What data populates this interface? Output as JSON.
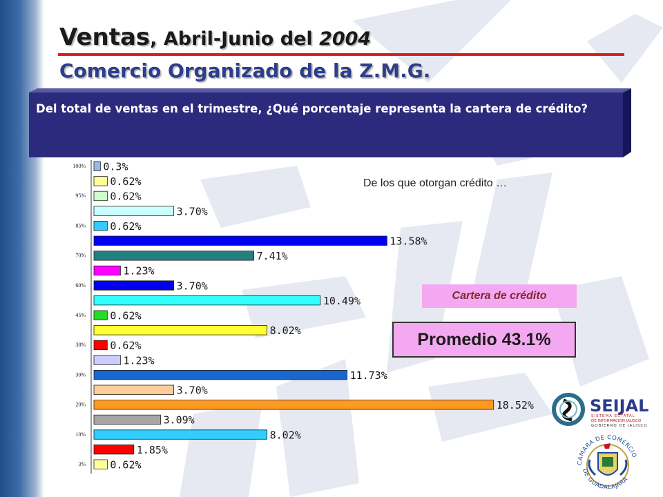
{
  "title": {
    "main": "Ventas",
    "rest": ", Abril-Junio del ",
    "year": "2004"
  },
  "subtitle": "Comercio Organizado de la Z.M.G.",
  "question": "Del total de ventas en el trimestre, ¿Qué porcentaje representa la cartera de crédito?",
  "note": "De los que otorgan crédito …",
  "cartera_label": "Cartera de crédito",
  "promedio": "Promedio 43.1%",
  "logos": {
    "seijal_name": "SEIJAL",
    "seijal_lines": [
      "SISTEMA ESTATAL",
      "DE INFORMACIÓN JALISCO",
      "GOBIERNO DE JALISCO"
    ],
    "camara_top": "CAMARA DE COMERCIO",
    "camara_bottom": "DE GUADALAJARA"
  },
  "colors": {
    "header_rule": "#d92020",
    "question_box": "#2c2a7c",
    "highlight": "#f5a8f2",
    "subtitle": "#2c3e8c"
  },
  "chart_data": {
    "type": "bar",
    "orientation": "horizontal",
    "categories": [
      "100%",
      "",
      "95%",
      "",
      "85%",
      "",
      "70%",
      "",
      "60%",
      "",
      "45%",
      "",
      "38%",
      "",
      "30%",
      "",
      "20%",
      "",
      "10%",
      "",
      "3%"
    ],
    "values": [
      0.3,
      0.62,
      0.62,
      3.7,
      0.62,
      13.58,
      7.41,
      1.23,
      3.7,
      10.49,
      0.62,
      8.02,
      0.62,
      1.23,
      11.73,
      3.7,
      18.52,
      3.09,
      8.02,
      1.85,
      0.62
    ],
    "value_labels": [
      "0.3%",
      "0.62%",
      "0.62%",
      "3.70%",
      "0.62%",
      "13.58%",
      "7.41%",
      "1.23%",
      "3.70%",
      "10.49%",
      "0.62%",
      "8.02%",
      "0.62%",
      "1.23%",
      "11.73%",
      "3.70%",
      "18.52%",
      "3.09%",
      "8.02%",
      "1.85%",
      "0.62%"
    ],
    "bar_colors": [
      "#9ab8ec",
      "#ffff99",
      "#ccffcc",
      "#ccffff",
      "#33ccff",
      "#0000ee",
      "#228080",
      "#ff00ff",
      "#0000ee",
      "#33ffff",
      "#22dd22",
      "#ffff33",
      "#ff0000",
      "#ccccff",
      "#1a66cc",
      "#ffcc99",
      "#ff9922",
      "#a6a6a6",
      "#33ccff",
      "#ff0000",
      "#ffff99"
    ],
    "xlim": [
      0,
      20
    ]
  }
}
